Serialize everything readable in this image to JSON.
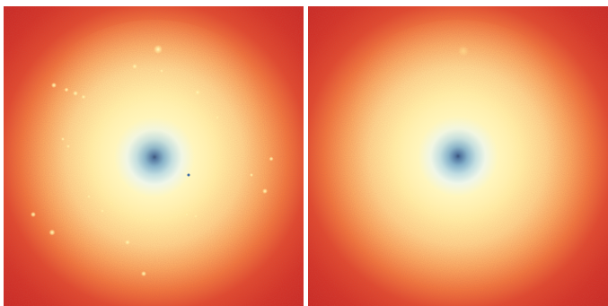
{
  "figure": {
    "panels": [
      {
        "id": "left",
        "description_semantic": "galaxy-radial-heatmap-with-point-sources",
        "colormap": "RdYlBu",
        "colors": {
          "edge": "#cc2a26",
          "outer": "#e04a30",
          "mid": "#f58a4c",
          "inner": "#fcc879",
          "bright": "#fff0a8",
          "core_light": "#eef7f0",
          "core_blue": "#91c3df",
          "core_deep": "#2b5a9c",
          "core_center": "#0f2f6e"
        },
        "has_point_sources": true
      },
      {
        "id": "right",
        "description_semantic": "galaxy-radial-heatmap-smooth-model",
        "colormap": "RdYlBu",
        "colors": {
          "edge": "#cc2a26",
          "outer": "#e04a30",
          "mid": "#f58a4c",
          "inner": "#fcc879",
          "bright": "#fff0a8",
          "core_light": "#eef7f0",
          "core_blue": "#91c3df",
          "core_deep": "#2b5a9c",
          "core_center": "#0f2f6e"
        },
        "has_point_sources": false
      }
    ]
  }
}
